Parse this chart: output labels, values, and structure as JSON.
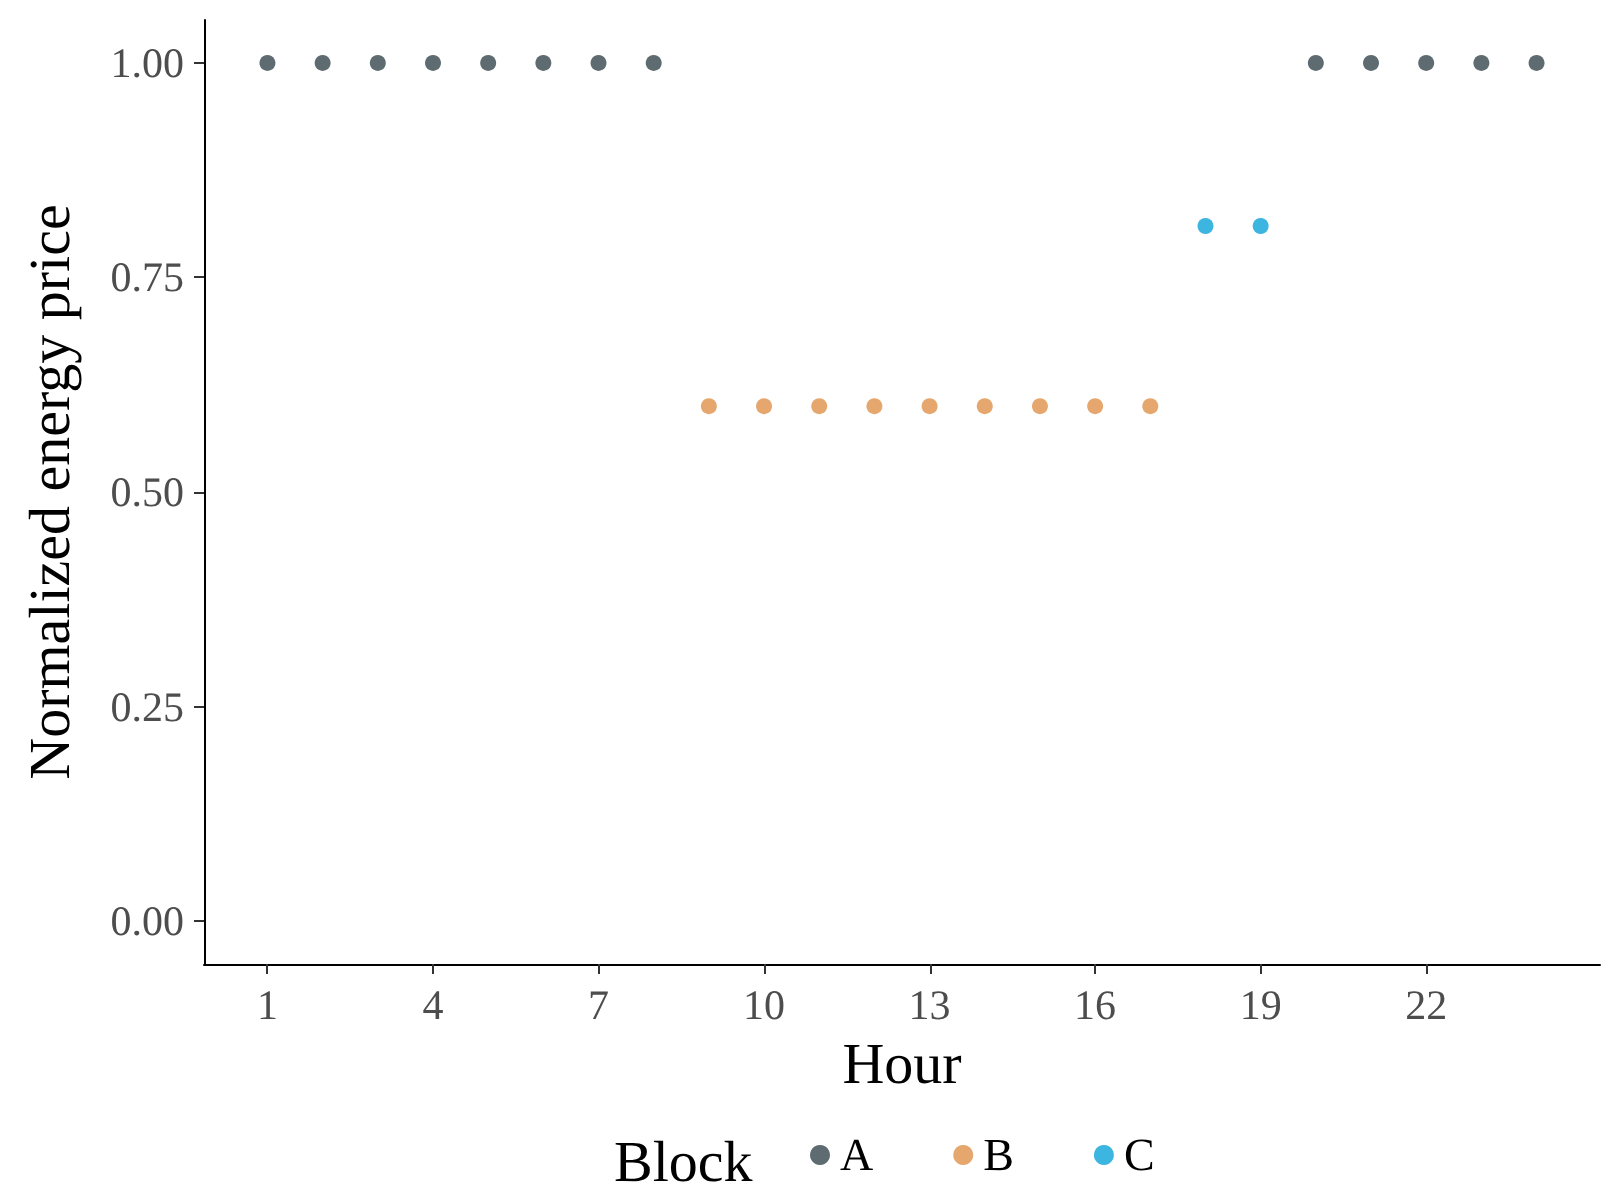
{
  "chart_data": {
    "type": "scatter",
    "xlabel": "Hour",
    "ylabel": "Normalized energy price",
    "legend_title": "Block",
    "series": [
      {
        "name": "A",
        "color": "#36474f",
        "x": [
          1,
          2,
          3,
          4,
          5,
          6,
          7,
          8,
          20,
          21,
          22,
          23,
          24
        ],
        "values": [
          1,
          1,
          1,
          1,
          1,
          1,
          1,
          1,
          1,
          1,
          1,
          1,
          1
        ]
      },
      {
        "name": "B",
        "color": "#e0914a",
        "x": [
          9,
          10,
          11,
          12,
          13,
          14,
          15,
          16,
          17
        ],
        "values": [
          0.6,
          0.6,
          0.6,
          0.6,
          0.6,
          0.6,
          0.6,
          0.6,
          0.6
        ]
      },
      {
        "name": "C",
        "color": "#0ba3d8",
        "x": [
          18,
          19
        ],
        "values": [
          0.81,
          0.81
        ]
      }
    ],
    "xlim": [
      -0.15,
      25.15
    ],
    "xticks": [
      1,
      4,
      7,
      10,
      13,
      16,
      19,
      22
    ],
    "ylim": [
      -0.05,
      1.05
    ],
    "yticks": [
      {
        "value": 0,
        "label": "0.00"
      },
      {
        "value": 0.25,
        "label": "0.25"
      },
      {
        "value": 0.5,
        "label": "0.50"
      },
      {
        "value": 0.75,
        "label": "0.75"
      },
      {
        "value": 1,
        "label": "1.00"
      }
    ],
    "grid": false,
    "legend": "bottom",
    "marker": "circle"
  }
}
